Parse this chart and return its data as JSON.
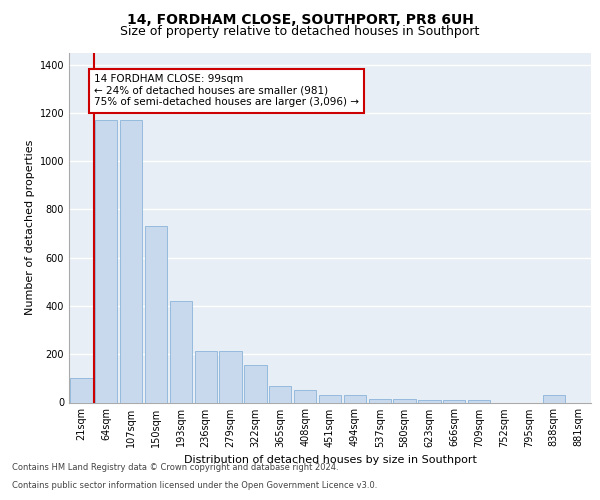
{
  "title1": "14, FORDHAM CLOSE, SOUTHPORT, PR8 6UH",
  "title2": "Size of property relative to detached houses in Southport",
  "xlabel": "Distribution of detached houses by size in Southport",
  "ylabel": "Number of detached properties",
  "footer1": "Contains HM Land Registry data © Crown copyright and database right 2024.",
  "footer2": "Contains public sector information licensed under the Open Government Licence v3.0.",
  "bin_labels": [
    "21sqm",
    "64sqm",
    "107sqm",
    "150sqm",
    "193sqm",
    "236sqm",
    "279sqm",
    "322sqm",
    "365sqm",
    "408sqm",
    "451sqm",
    "494sqm",
    "537sqm",
    "580sqm",
    "623sqm",
    "666sqm",
    "709sqm",
    "752sqm",
    "795sqm",
    "838sqm",
    "881sqm"
  ],
  "bar_values": [
    100,
    1170,
    1170,
    730,
    420,
    215,
    215,
    155,
    70,
    50,
    30,
    30,
    15,
    15,
    10,
    10,
    10,
    0,
    0,
    30,
    0
  ],
  "bar_color": "#c8d9ee",
  "bar_edge_color": "#8ab4d8",
  "vline_x": 1.5,
  "annotation_text": "14 FORDHAM CLOSE: 99sqm\n← 24% of detached houses are smaller (981)\n75% of semi-detached houses are larger (3,096) →",
  "annotation_box_color": "#ffffff",
  "annotation_box_edge_color": "#cc0000",
  "vline_color": "#cc0000",
  "ylim": [
    0,
    1450
  ],
  "yticks": [
    0,
    200,
    400,
    600,
    800,
    1000,
    1200,
    1400
  ],
  "background_color": "#ffffff",
  "plot_background_color": "#e8eef5",
  "grid_color": "#ffffff",
  "title_fontsize": 10,
  "subtitle_fontsize": 9,
  "axis_label_fontsize": 8,
  "tick_fontsize": 7
}
